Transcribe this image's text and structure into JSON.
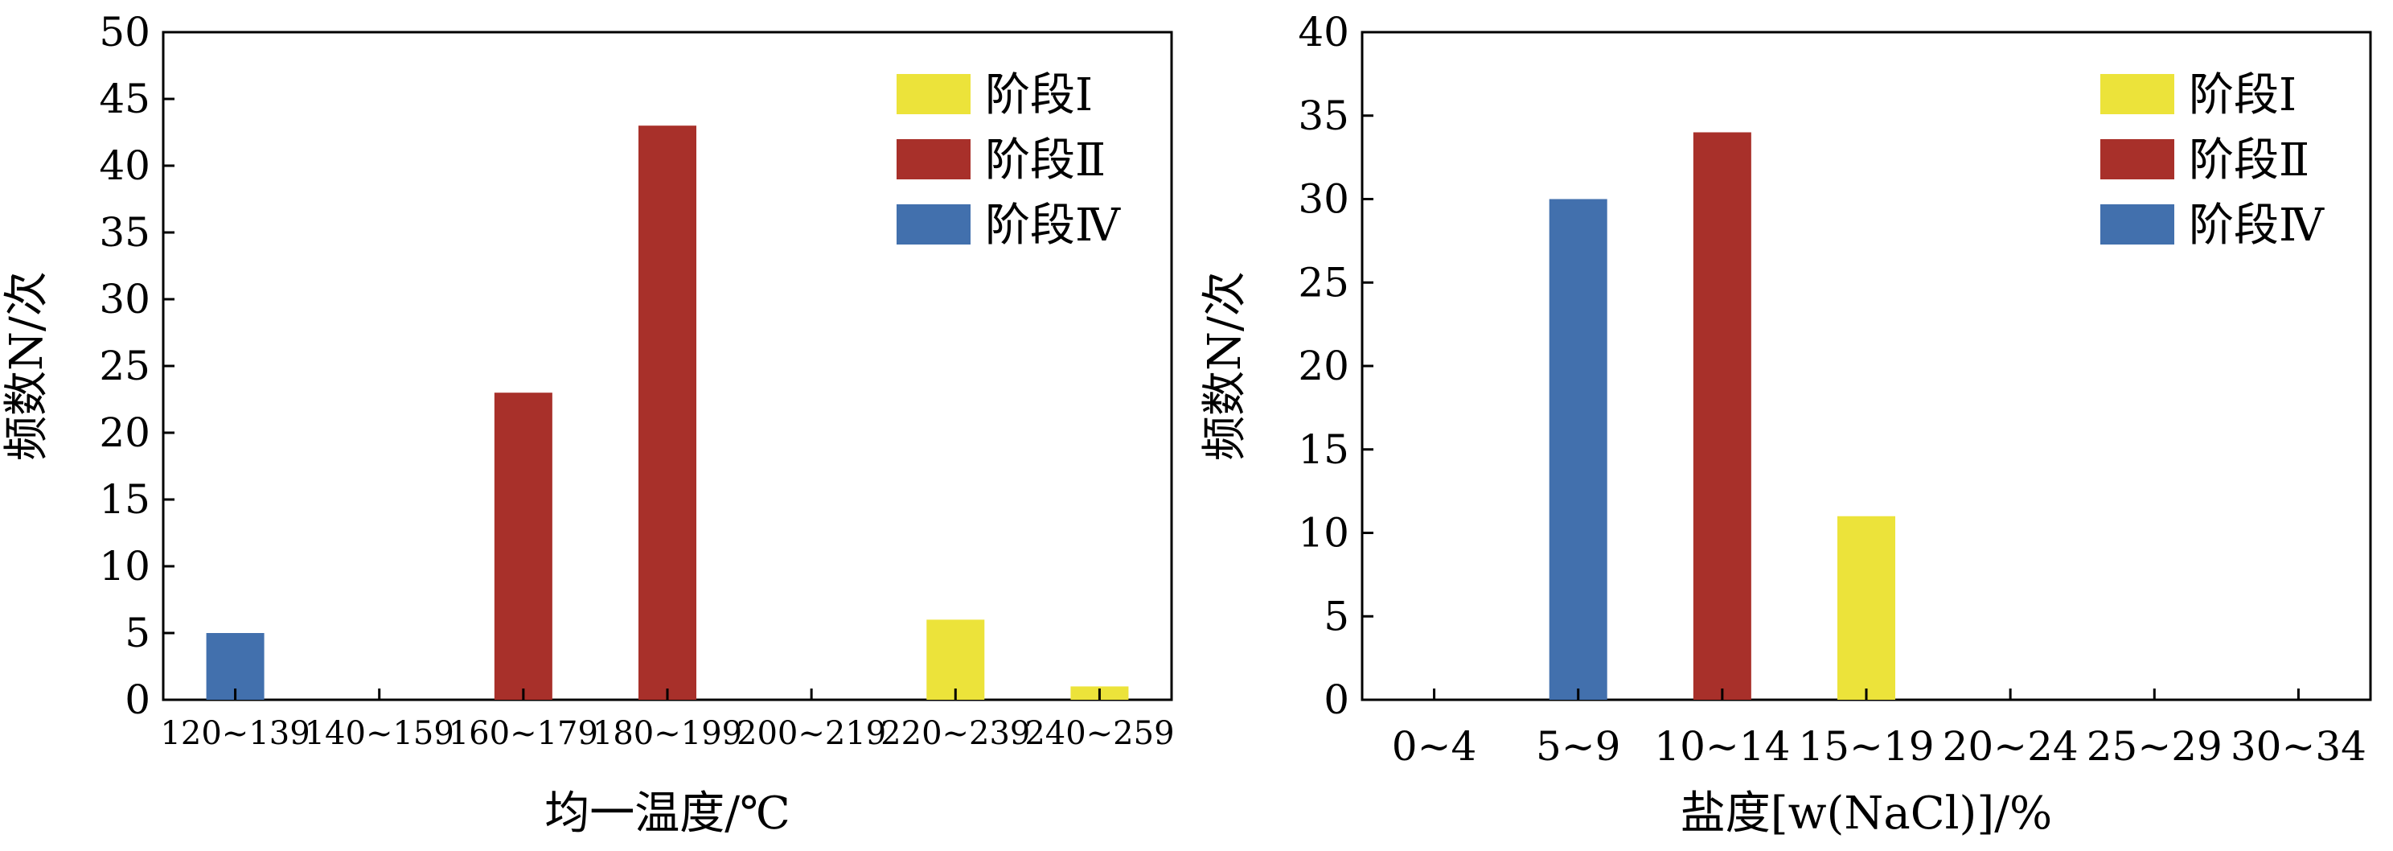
{
  "colors": {
    "stage1": "#ECE33A",
    "stage2": "#A8302A",
    "stage4": "#4270AD",
    "axis": "#000000"
  },
  "chart_data": [
    {
      "type": "bar",
      "categories": [
        "120~139",
        "140~159",
        "160~179",
        "180~199",
        "200~219",
        "220~239",
        "240~259"
      ],
      "series": [
        {
          "name": "阶段Ⅰ",
          "color": "#ECE33A",
          "values": [
            0,
            0,
            0,
            0,
            0,
            6,
            1
          ]
        },
        {
          "name": "阶段Ⅱ",
          "color": "#A8302A",
          "values": [
            0,
            0,
            23,
            43,
            0,
            0,
            0
          ]
        },
        {
          "name": "阶段Ⅳ",
          "color": "#4270AD",
          "values": [
            5,
            0,
            0,
            0,
            0,
            0,
            0
          ]
        }
      ],
      "yticks": [
        "0",
        "5",
        "10",
        "15",
        "20",
        "25",
        "30",
        "35",
        "40",
        "45",
        "50"
      ],
      "ylim": [
        0,
        50
      ],
      "xlabel": "均一温度/℃",
      "ylabel": "频数N/次",
      "legend": {
        "position": "top-right",
        "labels": [
          "阶段Ⅰ",
          "阶段Ⅱ",
          "阶段Ⅳ"
        ]
      },
      "grid": false
    },
    {
      "type": "bar",
      "categories": [
        "0~4",
        "5~9",
        "10~14",
        "15~19",
        "20~24",
        "25~29",
        "30~34"
      ],
      "series": [
        {
          "name": "阶段Ⅰ",
          "color": "#ECE33A",
          "values": [
            0,
            0,
            0,
            11,
            0,
            0,
            0
          ]
        },
        {
          "name": "阶段Ⅱ",
          "color": "#A8302A",
          "values": [
            0,
            0,
            34,
            0,
            0,
            0,
            0
          ]
        },
        {
          "name": "阶段Ⅳ",
          "color": "#4270AD",
          "values": [
            0,
            30,
            0,
            0,
            0,
            0,
            0
          ]
        }
      ],
      "yticks": [
        "0",
        "5",
        "10",
        "15",
        "20",
        "25",
        "30",
        "35",
        "40"
      ],
      "ylim": [
        0,
        40
      ],
      "xlabel": "盐度[w(NaCl)]/%",
      "ylabel": "频数N/次",
      "legend": {
        "position": "top-right",
        "labels": [
          "阶段Ⅰ",
          "阶段Ⅱ",
          "阶段Ⅳ"
        ]
      },
      "grid": false
    }
  ]
}
